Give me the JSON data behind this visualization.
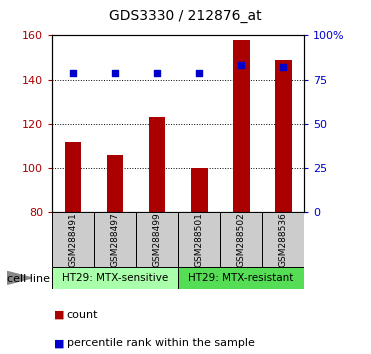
{
  "title": "GDS3330 / 212876_at",
  "categories": [
    "GSM288491",
    "GSM288497",
    "GSM288499",
    "GSM288501",
    "GSM288502",
    "GSM288536"
  ],
  "count_values": [
    112,
    106,
    123,
    100,
    158,
    149
  ],
  "percentile_values": [
    79,
    79,
    79,
    79,
    83,
    82
  ],
  "ylim_left": [
    80,
    160
  ],
  "ylim_right": [
    0,
    100
  ],
  "yticks_left": [
    80,
    100,
    120,
    140,
    160
  ],
  "yticks_right": [
    0,
    25,
    50,
    75,
    100
  ],
  "ytick_labels_right": [
    "0",
    "25",
    "50",
    "75",
    "100%"
  ],
  "bar_color": "#aa0000",
  "dot_color": "#0000cc",
  "cell_line_groups": [
    {
      "label": "HT29: MTX-sensitive",
      "indices": [
        0,
        1,
        2
      ],
      "color": "#aaffaa"
    },
    {
      "label": "HT29: MTX-resistant",
      "indices": [
        3,
        4,
        5
      ],
      "color": "#55dd55"
    }
  ],
  "legend_count_label": "count",
  "legend_pct_label": "percentile rank within the sample",
  "cell_line_label": "cell line",
  "bar_width": 0.4,
  "figsize": [
    3.71,
    3.54
  ],
  "dpi": 100
}
